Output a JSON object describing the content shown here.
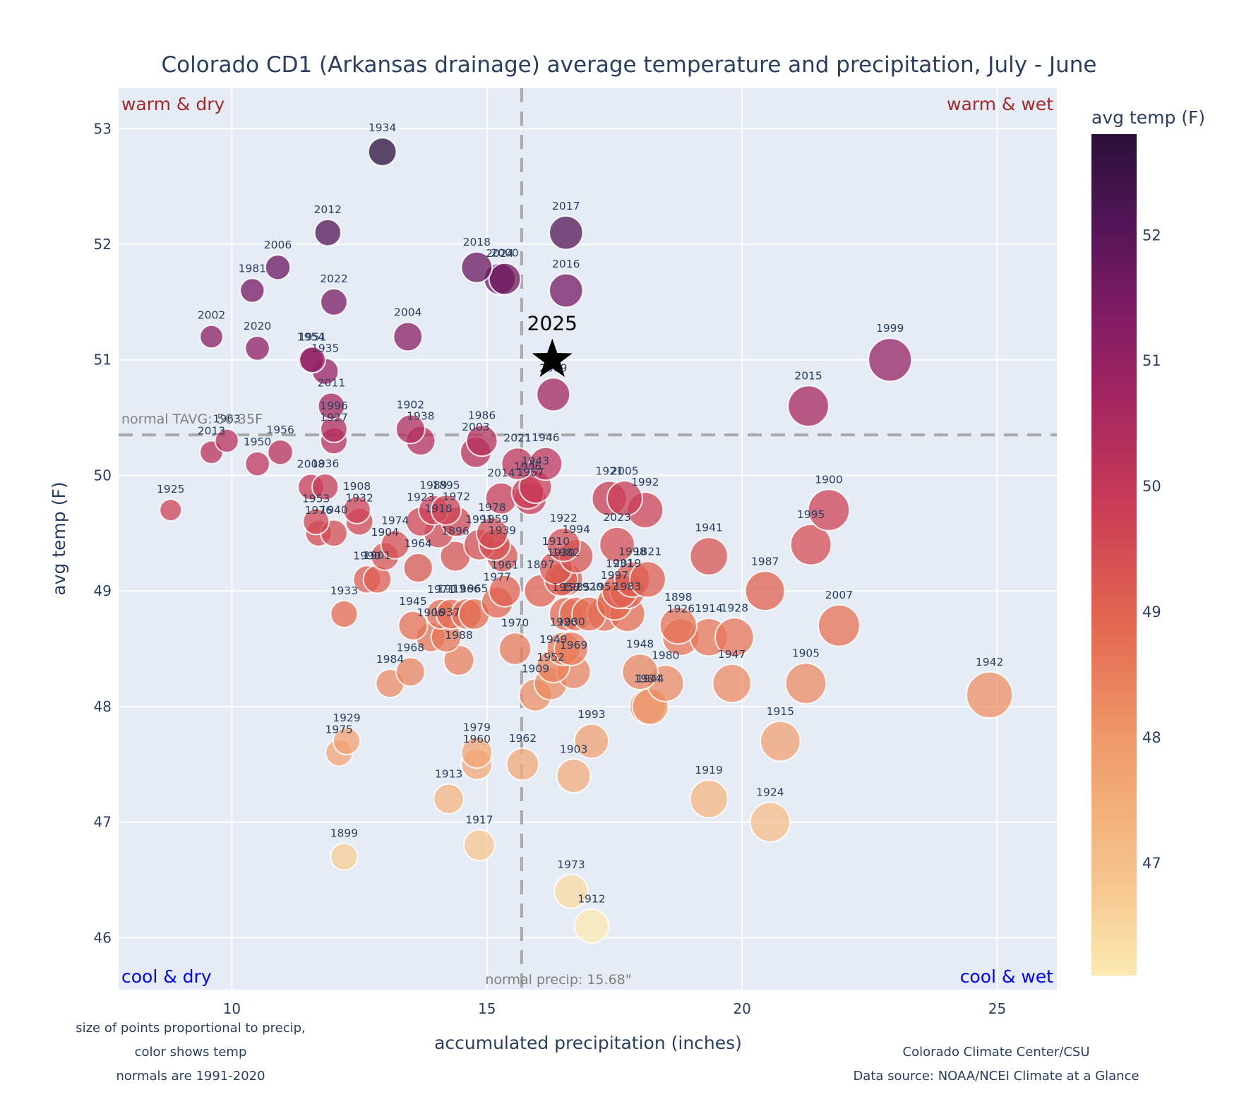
{
  "chart_data": {
    "type": "scatter",
    "title": "Colorado CD1 (Arkansas drainage) average temperature and precipitation, July - June",
    "xlabel": "accumulated precipitation (inches)",
    "ylabel": "avg temp (F)",
    "xlim": [
      7.78,
      26.17
    ],
    "ylim": [
      45.55,
      53.35
    ],
    "x_ticks": [
      10,
      15,
      20,
      25
    ],
    "y_ticks": [
      46,
      47,
      48,
      49,
      50,
      51,
      52,
      53
    ],
    "grid": true,
    "colorbar": {
      "title": "avg temp (F)",
      "range": [
        46.1,
        52.8
      ],
      "ticks": [
        47,
        48,
        49,
        50,
        51,
        52
      ],
      "colorscale": [
        "#fcf1b4",
        "#f6c28b",
        "#f29a6b",
        "#e86b53",
        "#cc4355",
        "#a5285f",
        "#791c6a",
        "#4e1558",
        "#2a0f38"
      ]
    },
    "reference_lines": {
      "normal_temp": 50.35,
      "normal_temp_label": "normal TAVG: 50.35F",
      "normal_precip": 15.68,
      "normal_precip_label": "normal precip: 15.68\""
    },
    "quadrant_labels": {
      "top_left": "warm & dry",
      "top_right": "warm & wet",
      "bottom_left": "cool & dry",
      "bottom_right": "cool & wet"
    },
    "highlight": {
      "label": "2025",
      "x": 16.28,
      "y": 51.0,
      "marker": "star"
    },
    "marker_size_note": "size of points proportional to precip",
    "points": [
      {
        "year": "1934",
        "x": 12.95,
        "y": 52.8
      },
      {
        "year": "2012",
        "x": 11.88,
        "y": 52.1
      },
      {
        "year": "2006",
        "x": 10.9,
        "y": 51.8
      },
      {
        "year": "1981",
        "x": 10.4,
        "y": 51.6
      },
      {
        "year": "2022",
        "x": 12.0,
        "y": 51.5
      },
      {
        "year": "2002",
        "x": 9.6,
        "y": 51.2
      },
      {
        "year": "2020",
        "x": 10.5,
        "y": 51.1
      },
      {
        "year": "2004",
        "x": 13.45,
        "y": 51.2
      },
      {
        "year": "1954",
        "x": 11.55,
        "y": 51.0
      },
      {
        "year": "1951",
        "x": 11.58,
        "y": 51.0
      },
      {
        "year": "1935",
        "x": 11.83,
        "y": 50.9
      },
      {
        "year": "2011",
        "x": 11.95,
        "y": 50.6
      },
      {
        "year": "1996",
        "x": 12.0,
        "y": 50.4
      },
      {
        "year": "1963",
        "x": 9.9,
        "y": 50.3
      },
      {
        "year": "2013",
        "x": 9.6,
        "y": 50.2
      },
      {
        "year": "1956",
        "x": 10.95,
        "y": 50.2
      },
      {
        "year": "1950",
        "x": 10.5,
        "y": 50.1
      },
      {
        "year": "1927",
        "x": 12.0,
        "y": 50.3
      },
      {
        "year": "2008",
        "x": 11.55,
        "y": 49.9
      },
      {
        "year": "1936",
        "x": 11.83,
        "y": 49.9
      },
      {
        "year": "1925",
        "x": 8.8,
        "y": 49.7
      },
      {
        "year": "1953",
        "x": 11.65,
        "y": 49.6
      },
      {
        "year": "1908",
        "x": 12.45,
        "y": 49.7
      },
      {
        "year": "1932",
        "x": 12.5,
        "y": 49.6
      },
      {
        "year": "1976",
        "x": 11.7,
        "y": 49.5
      },
      {
        "year": "1940",
        "x": 12.0,
        "y": 49.5
      },
      {
        "year": "1902",
        "x": 13.5,
        "y": 50.4
      },
      {
        "year": "1938",
        "x": 13.7,
        "y": 50.3
      },
      {
        "year": "1986",
        "x": 14.9,
        "y": 50.3
      },
      {
        "year": "2003",
        "x": 14.78,
        "y": 50.2
      },
      {
        "year": "1989",
        "x": 13.95,
        "y": 49.7
      },
      {
        "year": "1895",
        "x": 14.2,
        "y": 49.7
      },
      {
        "year": "1923",
        "x": 13.7,
        "y": 49.6
      },
      {
        "year": "1972",
        "x": 14.4,
        "y": 49.6
      },
      {
        "year": "1918",
        "x": 14.05,
        "y": 49.5
      },
      {
        "year": "1974",
        "x": 13.2,
        "y": 49.4
      },
      {
        "year": "1904",
        "x": 13.0,
        "y": 49.3
      },
      {
        "year": "1896",
        "x": 14.38,
        "y": 49.3
      },
      {
        "year": "1964",
        "x": 13.65,
        "y": 49.2
      },
      {
        "year": "1990",
        "x": 12.65,
        "y": 49.1
      },
      {
        "year": "1901",
        "x": 12.85,
        "y": 49.1
      },
      {
        "year": "1933",
        "x": 12.2,
        "y": 48.8
      },
      {
        "year": "2018",
        "x": 14.8,
        "y": 51.8
      },
      {
        "year": "2024",
        "x": 15.25,
        "y": 51.7
      },
      {
        "year": "2000",
        "x": 15.35,
        "y": 51.7
      },
      {
        "year": "2017",
        "x": 16.55,
        "y": 52.1
      },
      {
        "year": "2016",
        "x": 16.55,
        "y": 51.6
      },
      {
        "year": "1999",
        "x": 22.9,
        "y": 51.0
      },
      {
        "year": "2009",
        "x": 16.3,
        "y": 50.7
      },
      {
        "year": "2015",
        "x": 21.3,
        "y": 50.6
      },
      {
        "year": "2021",
        "x": 15.6,
        "y": 50.1
      },
      {
        "year": "1946",
        "x": 16.15,
        "y": 50.1
      },
      {
        "year": "1943",
        "x": 15.95,
        "y": 49.9
      },
      {
        "year": "2014",
        "x": 15.28,
        "y": 49.8
      },
      {
        "year": "1906",
        "x": 15.8,
        "y": 49.85
      },
      {
        "year": "1967",
        "x": 15.85,
        "y": 49.8
      },
      {
        "year": "1978",
        "x": 15.1,
        "y": 49.5
      },
      {
        "year": "1991",
        "x": 14.85,
        "y": 49.4
      },
      {
        "year": "1959",
        "x": 15.15,
        "y": 49.4
      },
      {
        "year": "1939",
        "x": 15.3,
        "y": 49.3
      },
      {
        "year": "1961",
        "x": 15.35,
        "y": 49.0
      },
      {
        "year": "1977",
        "x": 15.2,
        "y": 48.9
      },
      {
        "year": "1971",
        "x": 14.1,
        "y": 48.8
      },
      {
        "year": "1911",
        "x": 14.3,
        "y": 48.8
      },
      {
        "year": "1966",
        "x": 14.6,
        "y": 48.8
      },
      {
        "year": "1965",
        "x": 14.75,
        "y": 48.8
      },
      {
        "year": "1945",
        "x": 13.55,
        "y": 48.7
      },
      {
        "year": "1906b",
        "x": 13.9,
        "y": 48.6
      },
      {
        "year": "1937",
        "x": 14.2,
        "y": 48.6
      },
      {
        "year": "1988",
        "x": 14.45,
        "y": 48.4
      },
      {
        "year": "1968",
        "x": 13.5,
        "y": 48.3
      },
      {
        "year": "1984",
        "x": 13.1,
        "y": 48.2
      },
      {
        "year": "1921",
        "x": 17.4,
        "y": 49.8
      },
      {
        "year": "2005",
        "x": 17.7,
        "y": 49.8
      },
      {
        "year": "1992",
        "x": 18.1,
        "y": 49.7
      },
      {
        "year": "1922",
        "x": 16.5,
        "y": 49.4
      },
      {
        "year": "2023",
        "x": 17.55,
        "y": 49.4
      },
      {
        "year": "1994",
        "x": 16.75,
        "y": 49.3
      },
      {
        "year": "1941",
        "x": 19.35,
        "y": 49.3
      },
      {
        "year": "1910",
        "x": 16.35,
        "y": 49.2
      },
      {
        "year": "1982",
        "x": 16.55,
        "y": 49.1
      },
      {
        "year": "1930b",
        "x": 16.45,
        "y": 49.1
      },
      {
        "year": "1897",
        "x": 16.05,
        "y": 49.0
      },
      {
        "year": "1998",
        "x": 17.85,
        "y": 49.1
      },
      {
        "year": "1821",
        "x": 18.15,
        "y": 49.1
      },
      {
        "year": "1997",
        "x": 17.5,
        "y": 48.9
      },
      {
        "year": "2019",
        "x": 17.75,
        "y": 49.0
      },
      {
        "year": "1958",
        "x": 16.55,
        "y": 48.8
      },
      {
        "year": "1985",
        "x": 16.75,
        "y": 48.8
      },
      {
        "year": "1957",
        "x": 17.3,
        "y": 48.8
      },
      {
        "year": "1931",
        "x": 17.6,
        "y": 49.0
      },
      {
        "year": "1920",
        "x": 17.0,
        "y": 48.8
      },
      {
        "year": "1983",
        "x": 17.75,
        "y": 48.8
      },
      {
        "year": "1970",
        "x": 15.55,
        "y": 48.5
      },
      {
        "year": "1926",
        "x": 16.5,
        "y": 48.5
      },
      {
        "year": "1930",
        "x": 16.65,
        "y": 48.5
      },
      {
        "year": "1969",
        "x": 16.7,
        "y": 48.3
      },
      {
        "year": "1949",
        "x": 16.3,
        "y": 48.35
      },
      {
        "year": "1909",
        "x": 15.95,
        "y": 48.1
      },
      {
        "year": "1952",
        "x": 16.25,
        "y": 48.2
      },
      {
        "year": "1898",
        "x": 18.75,
        "y": 48.7
      },
      {
        "year": "1926b",
        "x": 18.8,
        "y": 48.6
      },
      {
        "year": "1914",
        "x": 19.35,
        "y": 48.6
      },
      {
        "year": "1928",
        "x": 19.85,
        "y": 48.6
      },
      {
        "year": "1948",
        "x": 18.0,
        "y": 48.3
      },
      {
        "year": "1980",
        "x": 18.5,
        "y": 48.2
      },
      {
        "year": "1934b",
        "x": 18.15,
        "y": 48.0
      },
      {
        "year": "1944",
        "x": 18.2,
        "y": 48.0
      },
      {
        "year": "1947",
        "x": 19.8,
        "y": 48.2
      },
      {
        "year": "1987",
        "x": 20.45,
        "y": 49.0
      },
      {
        "year": "1900",
        "x": 21.7,
        "y": 49.7
      },
      {
        "year": "1995",
        "x": 21.35,
        "y": 49.4
      },
      {
        "year": "2007",
        "x": 21.9,
        "y": 48.7
      },
      {
        "year": "1905",
        "x": 21.25,
        "y": 48.2
      },
      {
        "year": "1942",
        "x": 24.85,
        "y": 48.1
      },
      {
        "year": "1915",
        "x": 20.75,
        "y": 47.7
      },
      {
        "year": "1919",
        "x": 19.35,
        "y": 47.2
      },
      {
        "year": "1924",
        "x": 20.55,
        "y": 47.0
      },
      {
        "year": "1993",
        "x": 17.05,
        "y": 47.7
      },
      {
        "year": "1903",
        "x": 16.7,
        "y": 47.4
      },
      {
        "year": "1962",
        "x": 15.7,
        "y": 47.5
      },
      {
        "year": "1979",
        "x": 14.8,
        "y": 47.6
      },
      {
        "year": "1960",
        "x": 14.8,
        "y": 47.5
      },
      {
        "year": "1913",
        "x": 14.25,
        "y": 47.2
      },
      {
        "year": "1917",
        "x": 14.85,
        "y": 46.8
      },
      {
        "year": "1929",
        "x": 12.25,
        "y": 47.7
      },
      {
        "year": "1975",
        "x": 12.1,
        "y": 47.6
      },
      {
        "year": "1899",
        "x": 12.2,
        "y": 46.7
      },
      {
        "year": "1973",
        "x": 16.65,
        "y": 46.4
      },
      {
        "year": "1912",
        "x": 17.05,
        "y": 46.1
      }
    ]
  },
  "footnotes": {
    "left_line1": "size of points proportional to precip,",
    "left_line2": "color shows temp",
    "left_line3": "normals are 1991-2020",
    "right_line1": "Colorado Climate Center/CSU",
    "right_line2": "Data source: NOAA/NCEI Climate at a Glance"
  }
}
